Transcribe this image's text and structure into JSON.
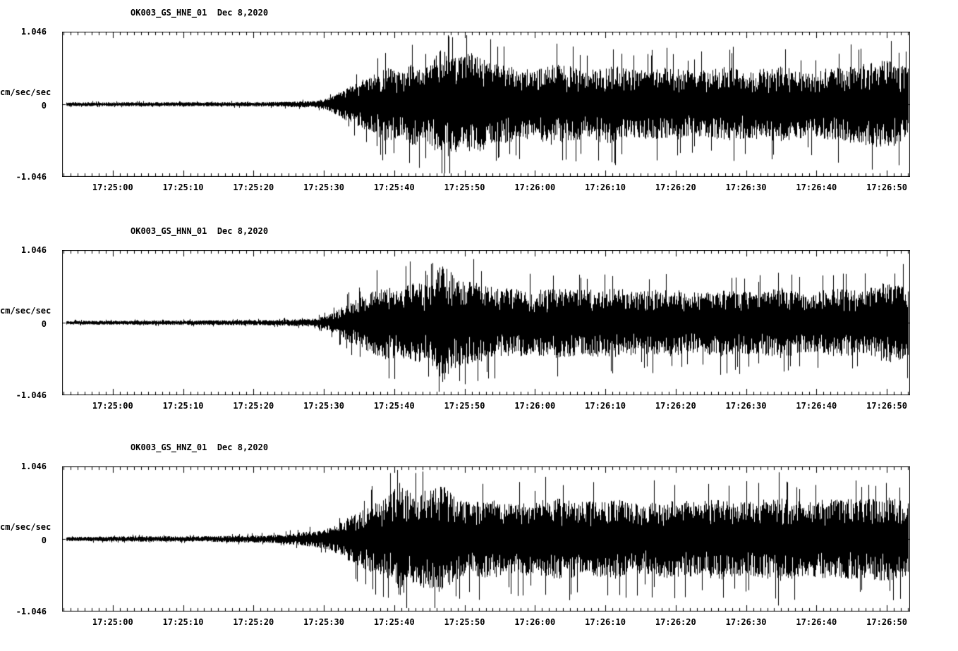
{
  "page": {
    "background": "#ffffff",
    "trace_color": "#000000",
    "text_color": "#000000"
  },
  "chart_data": [
    {
      "type": "line",
      "subtype": "seismogram",
      "title": "OK003_GS_HNE_01  Dec 8,2020",
      "station": "OK003",
      "channel": "HNE",
      "date": "Dec 8,2020",
      "ylabel": "cm/sec/sec",
      "ylim": [
        -1.046,
        1.046
      ],
      "ytick_labels": [
        "1.046",
        "0",
        "-1.046"
      ],
      "xtick_labels": [
        "17:25:00",
        "17:25:10",
        "17:25:20",
        "17:25:30",
        "17:25:40",
        "17:25:50",
        "17:26:00",
        "17:26:10",
        "17:26:20",
        "17:26:30",
        "17:26:40",
        "17:26:50"
      ],
      "x_first_tick_offset_seconds": 7.2,
      "x_tick_interval_seconds": 10,
      "duration_seconds": 120.5,
      "envelope_units": "cm/sec/sec",
      "envelope": {
        "t": [
          0,
          10,
          20,
          30,
          36,
          38,
          40,
          42,
          44,
          46,
          48,
          50,
          52,
          54,
          56,
          58,
          61,
          64,
          67,
          70,
          74,
          78,
          82,
          86,
          90,
          94,
          98,
          102,
          106,
          110,
          114,
          117,
          120.5
        ],
        "a": [
          0.03,
          0.03,
          0.03,
          0.035,
          0.05,
          0.1,
          0.22,
          0.33,
          0.42,
          0.55,
          0.48,
          0.62,
          0.55,
          0.85,
          0.7,
          0.78,
          0.6,
          0.55,
          0.5,
          0.62,
          0.52,
          0.58,
          0.5,
          0.55,
          0.48,
          0.55,
          0.5,
          0.56,
          0.48,
          0.55,
          0.6,
          0.65,
          0.55
        ]
      },
      "noise_seed": 11
    },
    {
      "type": "line",
      "subtype": "seismogram",
      "title": "OK003_GS_HNN_01  Dec 8,2020",
      "station": "OK003",
      "channel": "HNN",
      "date": "Dec 8,2020",
      "ylabel": "cm/sec/sec",
      "ylim": [
        -1.046,
        1.046
      ],
      "ytick_labels": [
        "1.046",
        "0",
        "-1.046"
      ],
      "xtick_labels": [
        "17:25:00",
        "17:25:10",
        "17:25:20",
        "17:25:30",
        "17:25:40",
        "17:25:50",
        "17:26:00",
        "17:26:10",
        "17:26:20",
        "17:26:30",
        "17:26:40",
        "17:26:50"
      ],
      "x_first_tick_offset_seconds": 7.2,
      "x_tick_interval_seconds": 10,
      "duration_seconds": 120.5,
      "envelope_units": "cm/sec/sec",
      "envelope": {
        "t": [
          0,
          10,
          20,
          30,
          36,
          38,
          40,
          42,
          44,
          46,
          48,
          50,
          52,
          54,
          56,
          58,
          61,
          64,
          67,
          70,
          74,
          78,
          82,
          86,
          90,
          94,
          98,
          102,
          106,
          110,
          114,
          117,
          120.5
        ],
        "a": [
          0.03,
          0.03,
          0.035,
          0.04,
          0.06,
          0.12,
          0.25,
          0.35,
          0.45,
          0.55,
          0.5,
          0.6,
          0.55,
          0.9,
          0.65,
          0.6,
          0.55,
          0.5,
          0.48,
          0.52,
          0.48,
          0.52,
          0.46,
          0.5,
          0.45,
          0.5,
          0.46,
          0.52,
          0.45,
          0.5,
          0.48,
          0.6,
          0.52
        ]
      },
      "noise_seed": 22
    },
    {
      "type": "line",
      "subtype": "seismogram",
      "title": "OK003_GS_HNZ_01  Dec 8,2020",
      "station": "OK003",
      "channel": "HNZ",
      "date": "Dec 8,2020",
      "ylabel": "cm/sec/sec",
      "ylim": [
        -1.046,
        1.046
      ],
      "ytick_labels": [
        "1.046",
        "0",
        "-1.046"
      ],
      "xtick_labels": [
        "17:25:00",
        "17:25:10",
        "17:25:20",
        "17:25:30",
        "17:25:40",
        "17:25:50",
        "17:26:00",
        "17:26:10",
        "17:26:20",
        "17:26:30",
        "17:26:40",
        "17:26:50"
      ],
      "x_first_tick_offset_seconds": 7.2,
      "x_tick_interval_seconds": 10,
      "duration_seconds": 120.5,
      "envelope_units": "cm/sec/sec",
      "envelope": {
        "t": [
          0,
          10,
          20,
          30,
          36,
          38,
          40,
          42,
          44,
          46,
          48,
          50,
          52,
          54,
          56,
          58,
          61,
          64,
          67,
          70,
          74,
          78,
          82,
          86,
          90,
          94,
          98,
          102,
          106,
          110,
          114,
          117,
          120.5
        ],
        "a": [
          0.03,
          0.04,
          0.04,
          0.06,
          0.12,
          0.16,
          0.28,
          0.4,
          0.5,
          0.6,
          0.85,
          0.65,
          0.75,
          0.8,
          0.6,
          0.55,
          0.58,
          0.52,
          0.55,
          0.6,
          0.55,
          0.6,
          0.52,
          0.58,
          0.55,
          0.6,
          0.55,
          0.62,
          0.55,
          0.6,
          0.58,
          0.62,
          0.55
        ]
      },
      "noise_seed": 33
    }
  ]
}
